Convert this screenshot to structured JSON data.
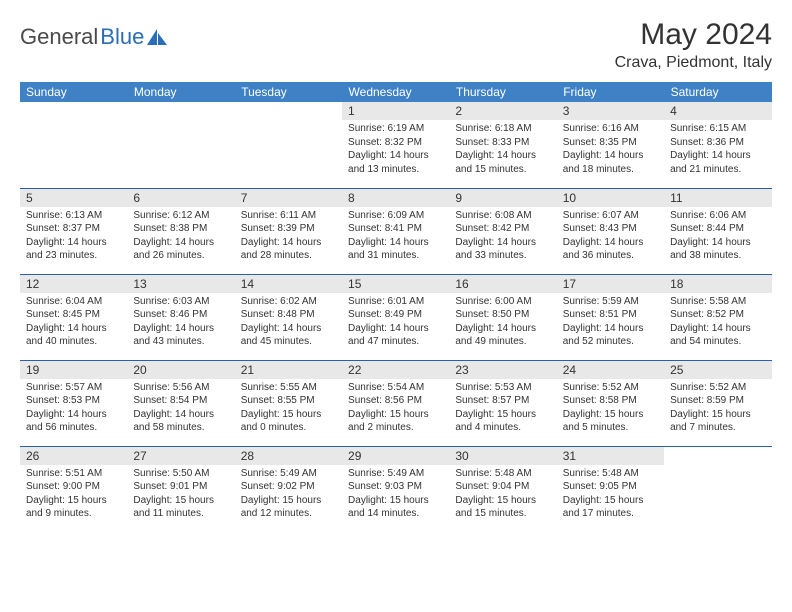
{
  "logo": {
    "text1": "General",
    "text2": "Blue"
  },
  "title": "May 2024",
  "location": "Crava, Piedmont, Italy",
  "weekdays": [
    "Sunday",
    "Monday",
    "Tuesday",
    "Wednesday",
    "Thursday",
    "Friday",
    "Saturday"
  ],
  "colors": {
    "header_bg": "#3e81c5",
    "header_text": "#ffffff",
    "daynum_bg": "#e8e8e8",
    "row_border": "#2960a5",
    "text": "#333333",
    "logo_blue": "#2a6db8",
    "background": "#ffffff"
  },
  "fonts": {
    "title_size": 30,
    "location_size": 16,
    "weekday_size": 12,
    "daynum_size": 12,
    "body_size": 10
  },
  "weeks": [
    [
      null,
      null,
      null,
      {
        "n": "1",
        "sunrise": "6:19 AM",
        "sunset": "8:32 PM",
        "dl": "14 hours and 13 minutes."
      },
      {
        "n": "2",
        "sunrise": "6:18 AM",
        "sunset": "8:33 PM",
        "dl": "14 hours and 15 minutes."
      },
      {
        "n": "3",
        "sunrise": "6:16 AM",
        "sunset": "8:35 PM",
        "dl": "14 hours and 18 minutes."
      },
      {
        "n": "4",
        "sunrise": "6:15 AM",
        "sunset": "8:36 PM",
        "dl": "14 hours and 21 minutes."
      }
    ],
    [
      {
        "n": "5",
        "sunrise": "6:13 AM",
        "sunset": "8:37 PM",
        "dl": "14 hours and 23 minutes."
      },
      {
        "n": "6",
        "sunrise": "6:12 AM",
        "sunset": "8:38 PM",
        "dl": "14 hours and 26 minutes."
      },
      {
        "n": "7",
        "sunrise": "6:11 AM",
        "sunset": "8:39 PM",
        "dl": "14 hours and 28 minutes."
      },
      {
        "n": "8",
        "sunrise": "6:09 AM",
        "sunset": "8:41 PM",
        "dl": "14 hours and 31 minutes."
      },
      {
        "n": "9",
        "sunrise": "6:08 AM",
        "sunset": "8:42 PM",
        "dl": "14 hours and 33 minutes."
      },
      {
        "n": "10",
        "sunrise": "6:07 AM",
        "sunset": "8:43 PM",
        "dl": "14 hours and 36 minutes."
      },
      {
        "n": "11",
        "sunrise": "6:06 AM",
        "sunset": "8:44 PM",
        "dl": "14 hours and 38 minutes."
      }
    ],
    [
      {
        "n": "12",
        "sunrise": "6:04 AM",
        "sunset": "8:45 PM",
        "dl": "14 hours and 40 minutes."
      },
      {
        "n": "13",
        "sunrise": "6:03 AM",
        "sunset": "8:46 PM",
        "dl": "14 hours and 43 minutes."
      },
      {
        "n": "14",
        "sunrise": "6:02 AM",
        "sunset": "8:48 PM",
        "dl": "14 hours and 45 minutes."
      },
      {
        "n": "15",
        "sunrise": "6:01 AM",
        "sunset": "8:49 PM",
        "dl": "14 hours and 47 minutes."
      },
      {
        "n": "16",
        "sunrise": "6:00 AM",
        "sunset": "8:50 PM",
        "dl": "14 hours and 49 minutes."
      },
      {
        "n": "17",
        "sunrise": "5:59 AM",
        "sunset": "8:51 PM",
        "dl": "14 hours and 52 minutes."
      },
      {
        "n": "18",
        "sunrise": "5:58 AM",
        "sunset": "8:52 PM",
        "dl": "14 hours and 54 minutes."
      }
    ],
    [
      {
        "n": "19",
        "sunrise": "5:57 AM",
        "sunset": "8:53 PM",
        "dl": "14 hours and 56 minutes."
      },
      {
        "n": "20",
        "sunrise": "5:56 AM",
        "sunset": "8:54 PM",
        "dl": "14 hours and 58 minutes."
      },
      {
        "n": "21",
        "sunrise": "5:55 AM",
        "sunset": "8:55 PM",
        "dl": "15 hours and 0 minutes."
      },
      {
        "n": "22",
        "sunrise": "5:54 AM",
        "sunset": "8:56 PM",
        "dl": "15 hours and 2 minutes."
      },
      {
        "n": "23",
        "sunrise": "5:53 AM",
        "sunset": "8:57 PM",
        "dl": "15 hours and 4 minutes."
      },
      {
        "n": "24",
        "sunrise": "5:52 AM",
        "sunset": "8:58 PM",
        "dl": "15 hours and 5 minutes."
      },
      {
        "n": "25",
        "sunrise": "5:52 AM",
        "sunset": "8:59 PM",
        "dl": "15 hours and 7 minutes."
      }
    ],
    [
      {
        "n": "26",
        "sunrise": "5:51 AM",
        "sunset": "9:00 PM",
        "dl": "15 hours and 9 minutes."
      },
      {
        "n": "27",
        "sunrise": "5:50 AM",
        "sunset": "9:01 PM",
        "dl": "15 hours and 11 minutes."
      },
      {
        "n": "28",
        "sunrise": "5:49 AM",
        "sunset": "9:02 PM",
        "dl": "15 hours and 12 minutes."
      },
      {
        "n": "29",
        "sunrise": "5:49 AM",
        "sunset": "9:03 PM",
        "dl": "15 hours and 14 minutes."
      },
      {
        "n": "30",
        "sunrise": "5:48 AM",
        "sunset": "9:04 PM",
        "dl": "15 hours and 15 minutes."
      },
      {
        "n": "31",
        "sunrise": "5:48 AM",
        "sunset": "9:05 PM",
        "dl": "15 hours and 17 minutes."
      },
      null
    ]
  ]
}
